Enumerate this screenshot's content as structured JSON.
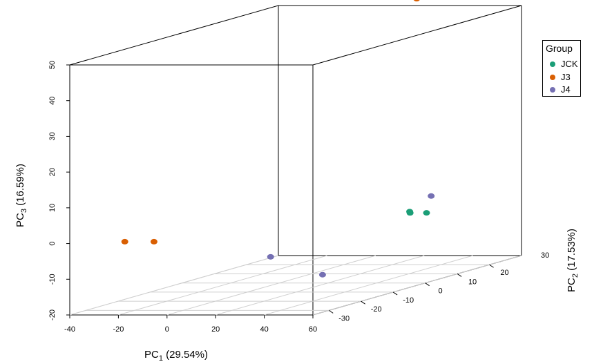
{
  "chart_data": {
    "type": "scatter",
    "dimensions": 3,
    "title": "",
    "xlabel": {
      "main": "PC",
      "sub": "1",
      "rest": " (29.54%)"
    },
    "ylabel": {
      "main": "PC",
      "sub": "2",
      "rest": " (17.53%)"
    },
    "zlabel": {
      "main": "PC",
      "sub": "3",
      "rest": " (16.59%)"
    },
    "xlim": [
      -40,
      60
    ],
    "ylim": [
      -35,
      30
    ],
    "zlim": [
      -20,
      50
    ],
    "x_ticks": [
      -40,
      -20,
      0,
      20,
      40,
      60
    ],
    "y_ticks": [
      -30,
      -20,
      -10,
      0,
      10,
      20
    ],
    "y_extra_tick": "30",
    "z_ticks": [
      -20,
      -10,
      0,
      10,
      20,
      30,
      40,
      50
    ],
    "legend": {
      "title": "Group",
      "position": "right"
    },
    "series": [
      {
        "name": "JCK",
        "color": "#1b9e77",
        "points": [
          [
            30,
            18,
            -5
          ],
          [
            31.5,
            22,
            -6
          ],
          [
            30.5,
            17.5,
            -4.5
          ]
        ]
      },
      {
        "name": "J3",
        "color": "#d95f02",
        "points": [
          [
            -20,
            -33,
            0
          ],
          [
            -8,
            -33,
            0
          ],
          [
            38,
            14,
            56
          ]
        ]
      },
      {
        "name": "J4",
        "color": "#7570b3",
        "points": [
          [
            36,
            -30,
            -5
          ],
          [
            60,
            -32,
            -9.5
          ],
          [
            40,
            17,
            0
          ]
        ]
      }
    ]
  }
}
